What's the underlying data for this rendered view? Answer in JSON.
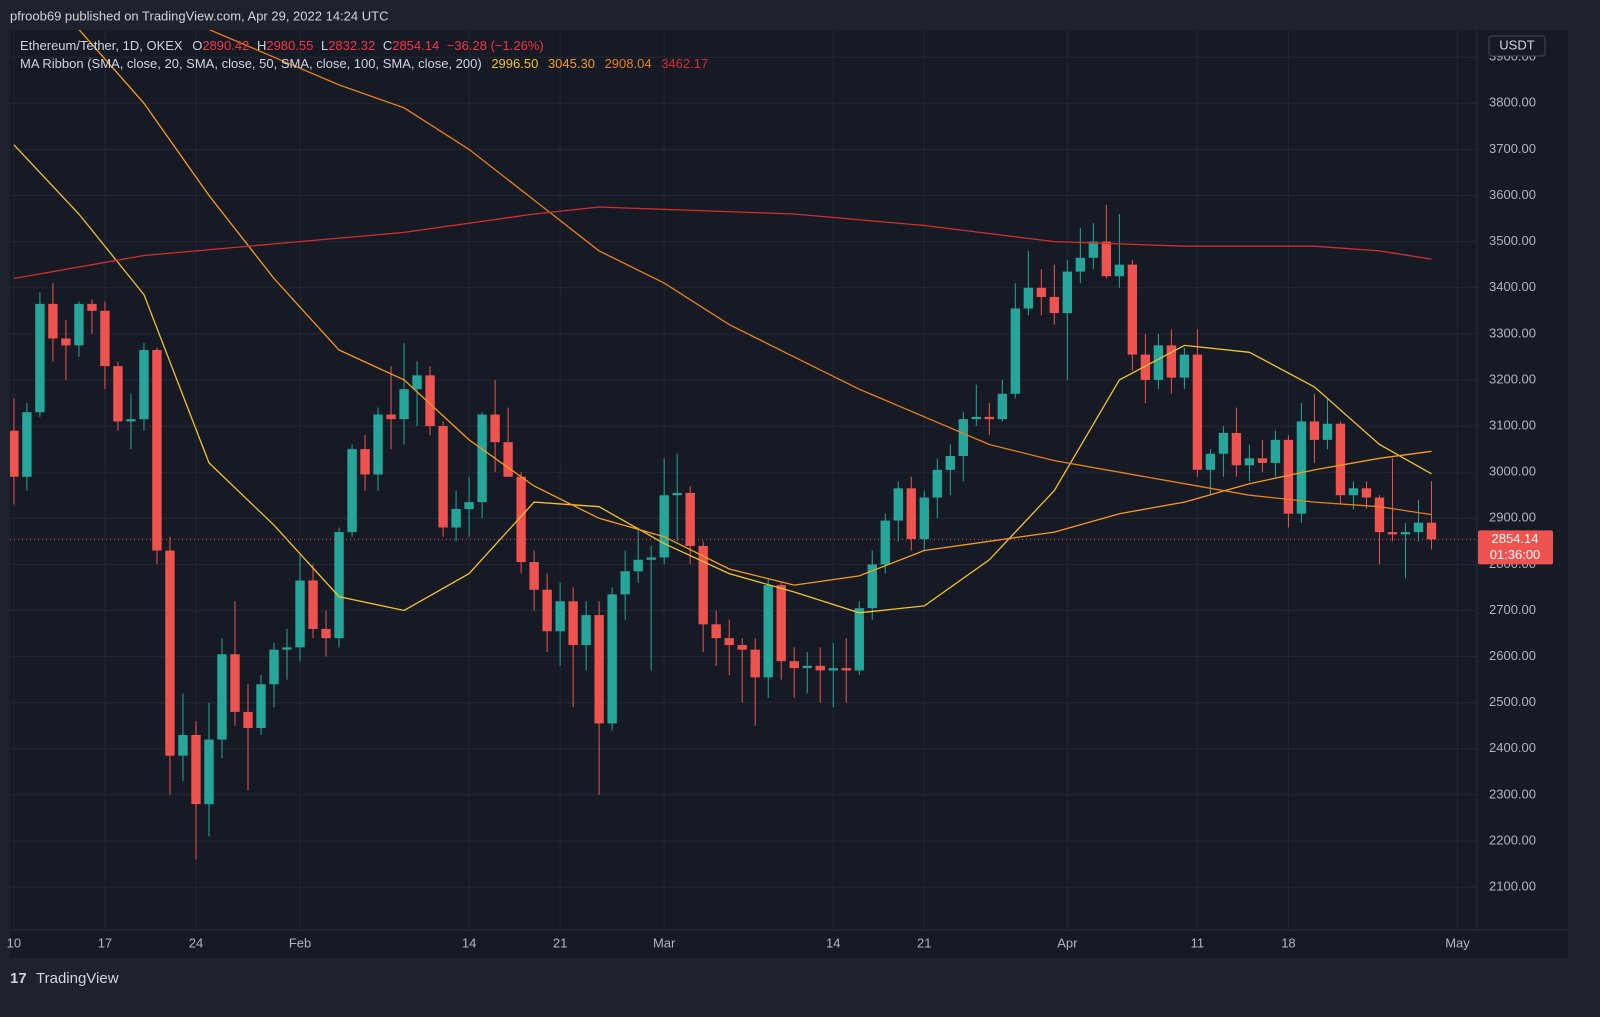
{
  "chart_data": {
    "type": "candlestick",
    "header": "pfroob69 published on TradingView.com, Apr 29, 2022 14:24 UTC",
    "title": "Ethereum/Tether, 1D, OKEX",
    "ohlc_labels": [
      "O",
      "H",
      "L",
      "C"
    ],
    "change_label": "−36.28 (−1.26%)",
    "indicator": "MA Ribbon (SMA, close, 20, SMA, close, 50, SMA, close, 100, SMA, close, 200)",
    "currency": "USDT",
    "countdown": "01:36:00",
    "brand": "TradingView",
    "up_color": "#26a69a",
    "down_color": "#ef5350",
    "open": [
      3090,
      2990,
      3130,
      3365,
      3290,
      3275,
      3365,
      3350,
      3230,
      3110,
      3115,
      3265,
      2830,
      2385,
      2430,
      2280,
      2420,
      2605,
      2480,
      2445,
      2540,
      2615,
      2620,
      2765,
      2660,
      2640,
      2870,
      3050,
      2995,
      3125,
      3115,
      3180,
      3210,
      3100,
      2880,
      2920,
      2935,
      3125,
      3065,
      2990,
      2805,
      2745,
      2655,
      2720,
      2625,
      2690,
      2455,
      2735,
      2785,
      2810,
      2815,
      2950,
      2955,
      2840,
      2670,
      2640,
      2625,
      2615,
      2555,
      2755,
      2590,
      2575,
      2580,
      2570,
      2575,
      2570,
      2705,
      2800,
      2895,
      2965,
      2855,
      2945,
      3005,
      3035,
      3115,
      3120,
      3115,
      3170,
      3355,
      3400,
      3380,
      3345,
      3435,
      3465,
      3500,
      3425,
      3450,
      3255,
      3200,
      3275,
      3205,
      3255,
      3005,
      3040,
      3085,
      3015,
      3030,
      3020,
      3070,
      2910,
      3110,
      3070,
      3105,
      2950,
      2965,
      2945,
      2870,
      2865,
      2870,
      2890.42
    ],
    "high": [
      3160,
      3150,
      3390,
      3410,
      3330,
      3370,
      3375,
      3370,
      3240,
      3170,
      3280,
      3270,
      2860,
      2520,
      2460,
      2500,
      2640,
      2720,
      2540,
      2560,
      2630,
      2660,
      2820,
      2800,
      2700,
      2880,
      3060,
      3080,
      3140,
      3230,
      3280,
      3240,
      3230,
      3110,
      2960,
      2990,
      3130,
      3200,
      3140,
      3000,
      2830,
      2780,
      2760,
      2750,
      2720,
      2720,
      2750,
      2830,
      2880,
      2840,
      3030,
      3040,
      2970,
      2850,
      2700,
      2680,
      2640,
      2640,
      2770,
      2760,
      2620,
      2610,
      2620,
      2630,
      2640,
      2720,
      2830,
      2910,
      2980,
      2990,
      2960,
      3030,
      3060,
      3130,
      3190,
      3150,
      3200,
      3410,
      3480,
      3440,
      3450,
      3460,
      3530,
      3540,
      3580,
      3560,
      3460,
      3300,
      3300,
      3310,
      3270,
      3310,
      3050,
      3100,
      3140,
      3060,
      3070,
      3090,
      3080,
      3150,
      3170,
      3160,
      3110,
      2980,
      2980,
      2950,
      3030,
      2890,
      2940,
      2980.55
    ],
    "low": [
      2930,
      2960,
      3120,
      3240,
      3200,
      3250,
      3300,
      3180,
      3090,
      3050,
      3090,
      2800,
      2300,
      2330,
      2160,
      2210,
      2380,
      2450,
      2310,
      2430,
      2490,
      2550,
      2590,
      2640,
      2600,
      2620,
      2860,
      2960,
      2960,
      3050,
      3060,
      3100,
      3080,
      2860,
      2850,
      2860,
      2900,
      3000,
      2990,
      2780,
      2700,
      2610,
      2580,
      2490,
      2570,
      2300,
      2440,
      2680,
      2760,
      2570,
      2800,
      2850,
      2800,
      2610,
      2580,
      2560,
      2500,
      2450,
      2510,
      2550,
      2510,
      2520,
      2500,
      2490,
      2500,
      2560,
      2680,
      2780,
      2850,
      2830,
      2830,
      2900,
      2950,
      2980,
      3100,
      3080,
      3110,
      3160,
      3340,
      3340,
      3320,
      3200,
      3410,
      3440,
      3420,
      3400,
      3220,
      3150,
      3180,
      3170,
      3180,
      2990,
      2950,
      2990,
      2990,
      2980,
      3000,
      2990,
      2880,
      2890,
      3020,
      3050,
      2930,
      2920,
      2920,
      2800,
      2850,
      2770,
      2850,
      2832.32
    ],
    "close": [
      2990,
      3130,
      3365,
      3290,
      3275,
      3365,
      3350,
      3230,
      3110,
      3115,
      3265,
      2830,
      2385,
      2430,
      2280,
      2420,
      2605,
      2480,
      2445,
      2540,
      2615,
      2620,
      2765,
      2660,
      2640,
      2870,
      3050,
      2995,
      3125,
      3115,
      3180,
      3210,
      3100,
      2880,
      2920,
      2935,
      3125,
      3065,
      2990,
      2805,
      2745,
      2655,
      2720,
      2625,
      2690,
      2455,
      2735,
      2785,
      2810,
      2815,
      2950,
      2955,
      2840,
      2670,
      2640,
      2625,
      2615,
      2555,
      2755,
      2590,
      2575,
      2580,
      2570,
      2575,
      2570,
      2705,
      2800,
      2895,
      2965,
      2855,
      2945,
      3005,
      3035,
      3115,
      3120,
      3115,
      3170,
      3355,
      3400,
      3380,
      3345,
      3435,
      3465,
      3500,
      3425,
      3450,
      3255,
      3200,
      3275,
      3205,
      3255,
      3005,
      3040,
      3085,
      3015,
      3030,
      3020,
      3070,
      2910,
      3110,
      3070,
      3105,
      2950,
      2965,
      2945,
      2870,
      2865,
      2870,
      2890.42,
      2854.14
    ],
    "series": [
      {
        "color": "#f2c12e",
        "legend_value": "2996.50",
        "x": [
          0,
          5,
          10,
          15,
          20,
          25,
          30,
          35,
          40,
          45,
          50,
          55,
          60,
          65,
          70,
          75,
          80,
          85,
          90,
          95,
          100,
          105,
          109
        ],
        "values": [
          3710,
          3560,
          3385,
          3020,
          2885,
          2730,
          2700,
          2780,
          2935,
          2925,
          2845,
          2780,
          2740,
          2695,
          2710,
          2810,
          2960,
          3200,
          3275,
          3260,
          3185,
          3060,
          2996.5
        ]
      },
      {
        "color": "#f79d1e",
        "legend_value": "3045.30",
        "x": [
          5,
          10,
          15,
          20,
          25,
          30,
          35,
          40,
          45,
          50,
          55,
          60,
          65,
          70,
          75,
          80,
          85,
          90,
          95,
          100,
          105,
          109
        ],
        "values": [
          3960,
          3800,
          3600,
          3420,
          3265,
          3200,
          3070,
          2970,
          2900,
          2860,
          2790,
          2755,
          2775,
          2830,
          2850,
          2870,
          2910,
          2935,
          2975,
          3005,
          3030,
          3045.3
        ]
      },
      {
        "color": "#e8801c",
        "legend_value": "2908.04",
        "x": [
          15,
          20,
          25,
          30,
          35,
          40,
          45,
          50,
          55,
          60,
          65,
          70,
          75,
          80,
          85,
          90,
          95,
          100,
          105,
          109
        ],
        "values": [
          3960,
          3900,
          3840,
          3790,
          3700,
          3590,
          3480,
          3410,
          3320,
          3250,
          3180,
          3120,
          3060,
          3025,
          3000,
          2975,
          2950,
          2935,
          2925,
          2908.04
        ]
      },
      {
        "color": "#d32e2e",
        "legend_value": "3462.17",
        "x": [
          0,
          10,
          20,
          30,
          40,
          45,
          50,
          60,
          70,
          80,
          90,
          100,
          105,
          109
        ],
        "values": [
          3420,
          3470,
          3495,
          3520,
          3560,
          3575,
          3570,
          3560,
          3535,
          3500,
          3490,
          3490,
          3480,
          3462.17
        ]
      }
    ],
    "xlim": [
      -0.3,
      112.5
    ],
    "xticks": [
      {
        "value": 0,
        "label": "10"
      },
      {
        "value": 7,
        "label": "17"
      },
      {
        "value": 14,
        "label": "24"
      },
      {
        "value": 22,
        "label": "Feb"
      },
      {
        "value": 35,
        "label": "14"
      },
      {
        "value": 42,
        "label": "21"
      },
      {
        "value": 50,
        "label": "Mar"
      },
      {
        "value": 63,
        "label": "14"
      },
      {
        "value": 70,
        "label": "21"
      },
      {
        "value": 81,
        "label": "Apr"
      },
      {
        "value": 91,
        "label": "11"
      },
      {
        "value": 98,
        "label": "18"
      },
      {
        "value": 111,
        "label": "May"
      }
    ],
    "ylim": [
      2007,
      3959
    ],
    "yticks": [
      {
        "value": 2100,
        "label": "2100.00"
      },
      {
        "value": 2200,
        "label": "2200.00"
      },
      {
        "value": 2300,
        "label": "2300.00"
      },
      {
        "value": 2400,
        "label": "2400.00"
      },
      {
        "value": 2500,
        "label": "2500.00"
      },
      {
        "value": 2600,
        "label": "2600.00"
      },
      {
        "value": 2700,
        "label": "2700.00"
      },
      {
        "value": 2800,
        "label": "2800.00"
      },
      {
        "value": 2900,
        "label": "2900.00"
      },
      {
        "value": 3000,
        "label": "3000.00"
      },
      {
        "value": 3100,
        "label": "3100.00"
      },
      {
        "value": 3200,
        "label": "3200.00"
      },
      {
        "value": 3300,
        "label": "3300.00"
      },
      {
        "value": 3400,
        "label": "3400.00"
      },
      {
        "value": 3500,
        "label": "3500.00"
      },
      {
        "value": 3600,
        "label": "3600.00"
      },
      {
        "value": 3700,
        "label": "3700.00"
      },
      {
        "value": 3800,
        "label": "3800.00"
      },
      {
        "value": 3900,
        "label": "3900.00"
      }
    ],
    "grid": true
  }
}
